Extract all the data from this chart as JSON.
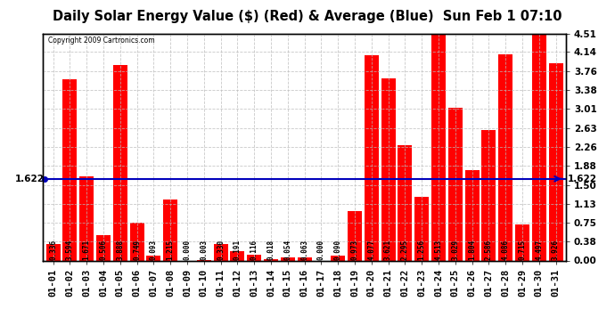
{
  "title": "Daily Solar Energy Value ($) (Red) & Average (Blue)  Sun Feb 1 07:10",
  "copyright": "Copyright 2009 Cartronics.com",
  "categories": [
    "01-01",
    "01-02",
    "01-03",
    "01-04",
    "01-05",
    "01-06",
    "01-07",
    "01-08",
    "01-09",
    "01-10",
    "01-11",
    "01-12",
    "01-13",
    "01-14",
    "01-15",
    "01-16",
    "01-17",
    "01-18",
    "01-19",
    "01-20",
    "01-21",
    "01-22",
    "01-23",
    "01-24",
    "01-25",
    "01-26",
    "01-27",
    "01-28",
    "01-29",
    "01-30",
    "01-31"
  ],
  "values": [
    0.336,
    3.594,
    1.671,
    0.506,
    3.888,
    0.749,
    0.093,
    1.215,
    0.0,
    0.003,
    0.33,
    0.191,
    0.116,
    0.018,
    0.054,
    0.063,
    0.0,
    0.09,
    0.973,
    4.077,
    3.621,
    2.295,
    1.256,
    4.513,
    3.029,
    1.804,
    2.586,
    4.086,
    0.715,
    4.497,
    3.926
  ],
  "average": 1.622,
  "bar_color": "#FF0000",
  "avg_line_color": "#0000BB",
  "background_color": "#FFFFFF",
  "plot_bg_color": "#FFFFFF",
  "grid_color": "#BBBBBB",
  "ylim": [
    0.0,
    4.51
  ],
  "yticks": [
    0.0,
    0.38,
    0.75,
    1.13,
    1.5,
    1.88,
    2.26,
    2.63,
    3.01,
    3.38,
    3.76,
    4.14,
    4.51
  ],
  "title_fontsize": 10.5,
  "tick_fontsize": 7.5,
  "value_fontsize": 5.5,
  "avg_label": "1.622",
  "figsize": [
    6.9,
    3.75
  ],
  "dpi": 100
}
